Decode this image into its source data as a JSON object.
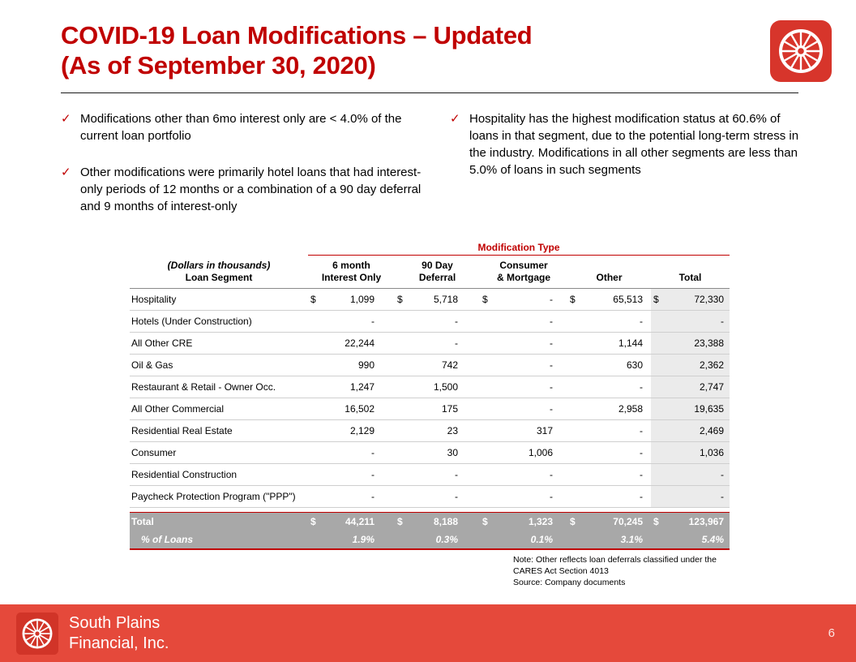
{
  "colors": {
    "title_red": "#C00000",
    "accent_red": "#C00000",
    "footer_red": "#E5493B",
    "logo_red": "#D7352B",
    "total_band_gray": "#A8A8A8",
    "total_column_shade": "#EBEBEB"
  },
  "header": {
    "title_line1": "COVID-19 Loan Modifications – Updated",
    "title_line2": "(As of September 30, 2020)"
  },
  "bullets": {
    "check_glyph": "✓",
    "left": [
      "Modifications other than 6mo interest only are < 4.0% of the current loan portfolio",
      "Other modifications were primarily hotel loans that had interest-only periods of 12 months or a combination of a 90 day deferral and 9 months of interest-only"
    ],
    "right": [
      "Hospitality has the highest modification status at 60.6% of loans in that segment, due to the potential long-term stress in the industry. Modifications in all other segments are less than 5.0% of loans in such segments"
    ]
  },
  "table": {
    "group_header": "Modification Type",
    "currency": "$",
    "corner": {
      "line1": "(Dollars in thousands)",
      "line2": "Loan Segment"
    },
    "columns": [
      {
        "line1": "6 month",
        "line2": "Interest Only"
      },
      {
        "line1": "90 Day",
        "line2": "Deferral"
      },
      {
        "line1": "Consumer",
        "line2": "& Mortgage"
      },
      {
        "line1": "",
        "line2": "Other"
      },
      {
        "line1": "",
        "line2": "Total"
      }
    ],
    "rows": [
      {
        "label": "Hospitality",
        "dollar": true,
        "values": [
          "1,099",
          "5,718",
          "-",
          "65,513",
          "72,330"
        ]
      },
      {
        "label": "Hotels (Under Construction)",
        "values": [
          "-",
          "-",
          "-",
          "-",
          "-"
        ]
      },
      {
        "label": "All Other CRE",
        "values": [
          "22,244",
          "-",
          "-",
          "1,144",
          "23,388"
        ]
      },
      {
        "label": "Oil & Gas",
        "values": [
          "990",
          "742",
          "-",
          "630",
          "2,362"
        ]
      },
      {
        "label": "Restaurant & Retail - Owner Occ.",
        "values": [
          "1,247",
          "1,500",
          "-",
          "-",
          "2,747"
        ]
      },
      {
        "label": "All Other Commercial",
        "values": [
          "16,502",
          "175",
          "-",
          "2,958",
          "19,635"
        ]
      },
      {
        "label": "Residential Real Estate",
        "values": [
          "2,129",
          "23",
          "317",
          "-",
          "2,469"
        ]
      },
      {
        "label": "Consumer",
        "values": [
          "-",
          "30",
          "1,006",
          "-",
          "1,036"
        ]
      },
      {
        "label": "Residential Construction",
        "values": [
          "-",
          "-",
          "-",
          "-",
          "-"
        ]
      },
      {
        "label": "Paycheck Protection Program (\"PPP\")",
        "values": [
          "-",
          "-",
          "-",
          "-",
          "-"
        ]
      }
    ],
    "total_row": {
      "label": "Total",
      "dollar": true,
      "values": [
        "44,211",
        "8,188",
        "1,323",
        "70,245",
        "123,967"
      ]
    },
    "pct_row": {
      "label": "% of Loans",
      "values": [
        "1.9%",
        "0.3%",
        "0.1%",
        "3.1%",
        "5.4%"
      ]
    }
  },
  "notes": {
    "note": "Note: Other reflects loan deferrals classified under the CARES Act Section 4013",
    "source": "Source: Company documents"
  },
  "footer": {
    "name_line1": "South Plains",
    "name_line2": "Financial, Inc.",
    "page_number": "6"
  }
}
